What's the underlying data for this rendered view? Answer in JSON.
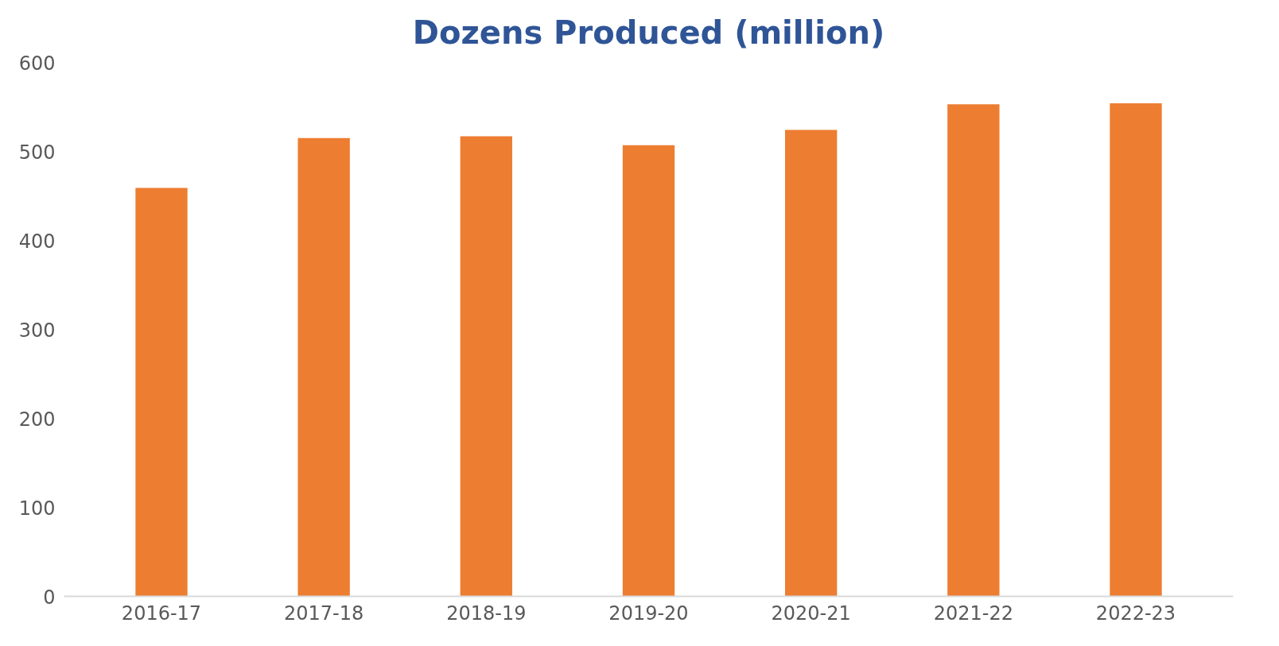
{
  "chart_data": {
    "type": "bar",
    "title": "Dozens Produced (million)",
    "categories": [
      "2016-17",
      "2017-18",
      "2018-19",
      "2019-20",
      "2020-21",
      "2021-22",
      "2022-23"
    ],
    "values": [
      459,
      515,
      517,
      507,
      524,
      553,
      554
    ],
    "color": "#ed7d31",
    "ylim": [
      0,
      600
    ],
    "yticks": [
      0,
      100,
      200,
      300,
      400,
      500,
      600
    ],
    "grid": false
  }
}
